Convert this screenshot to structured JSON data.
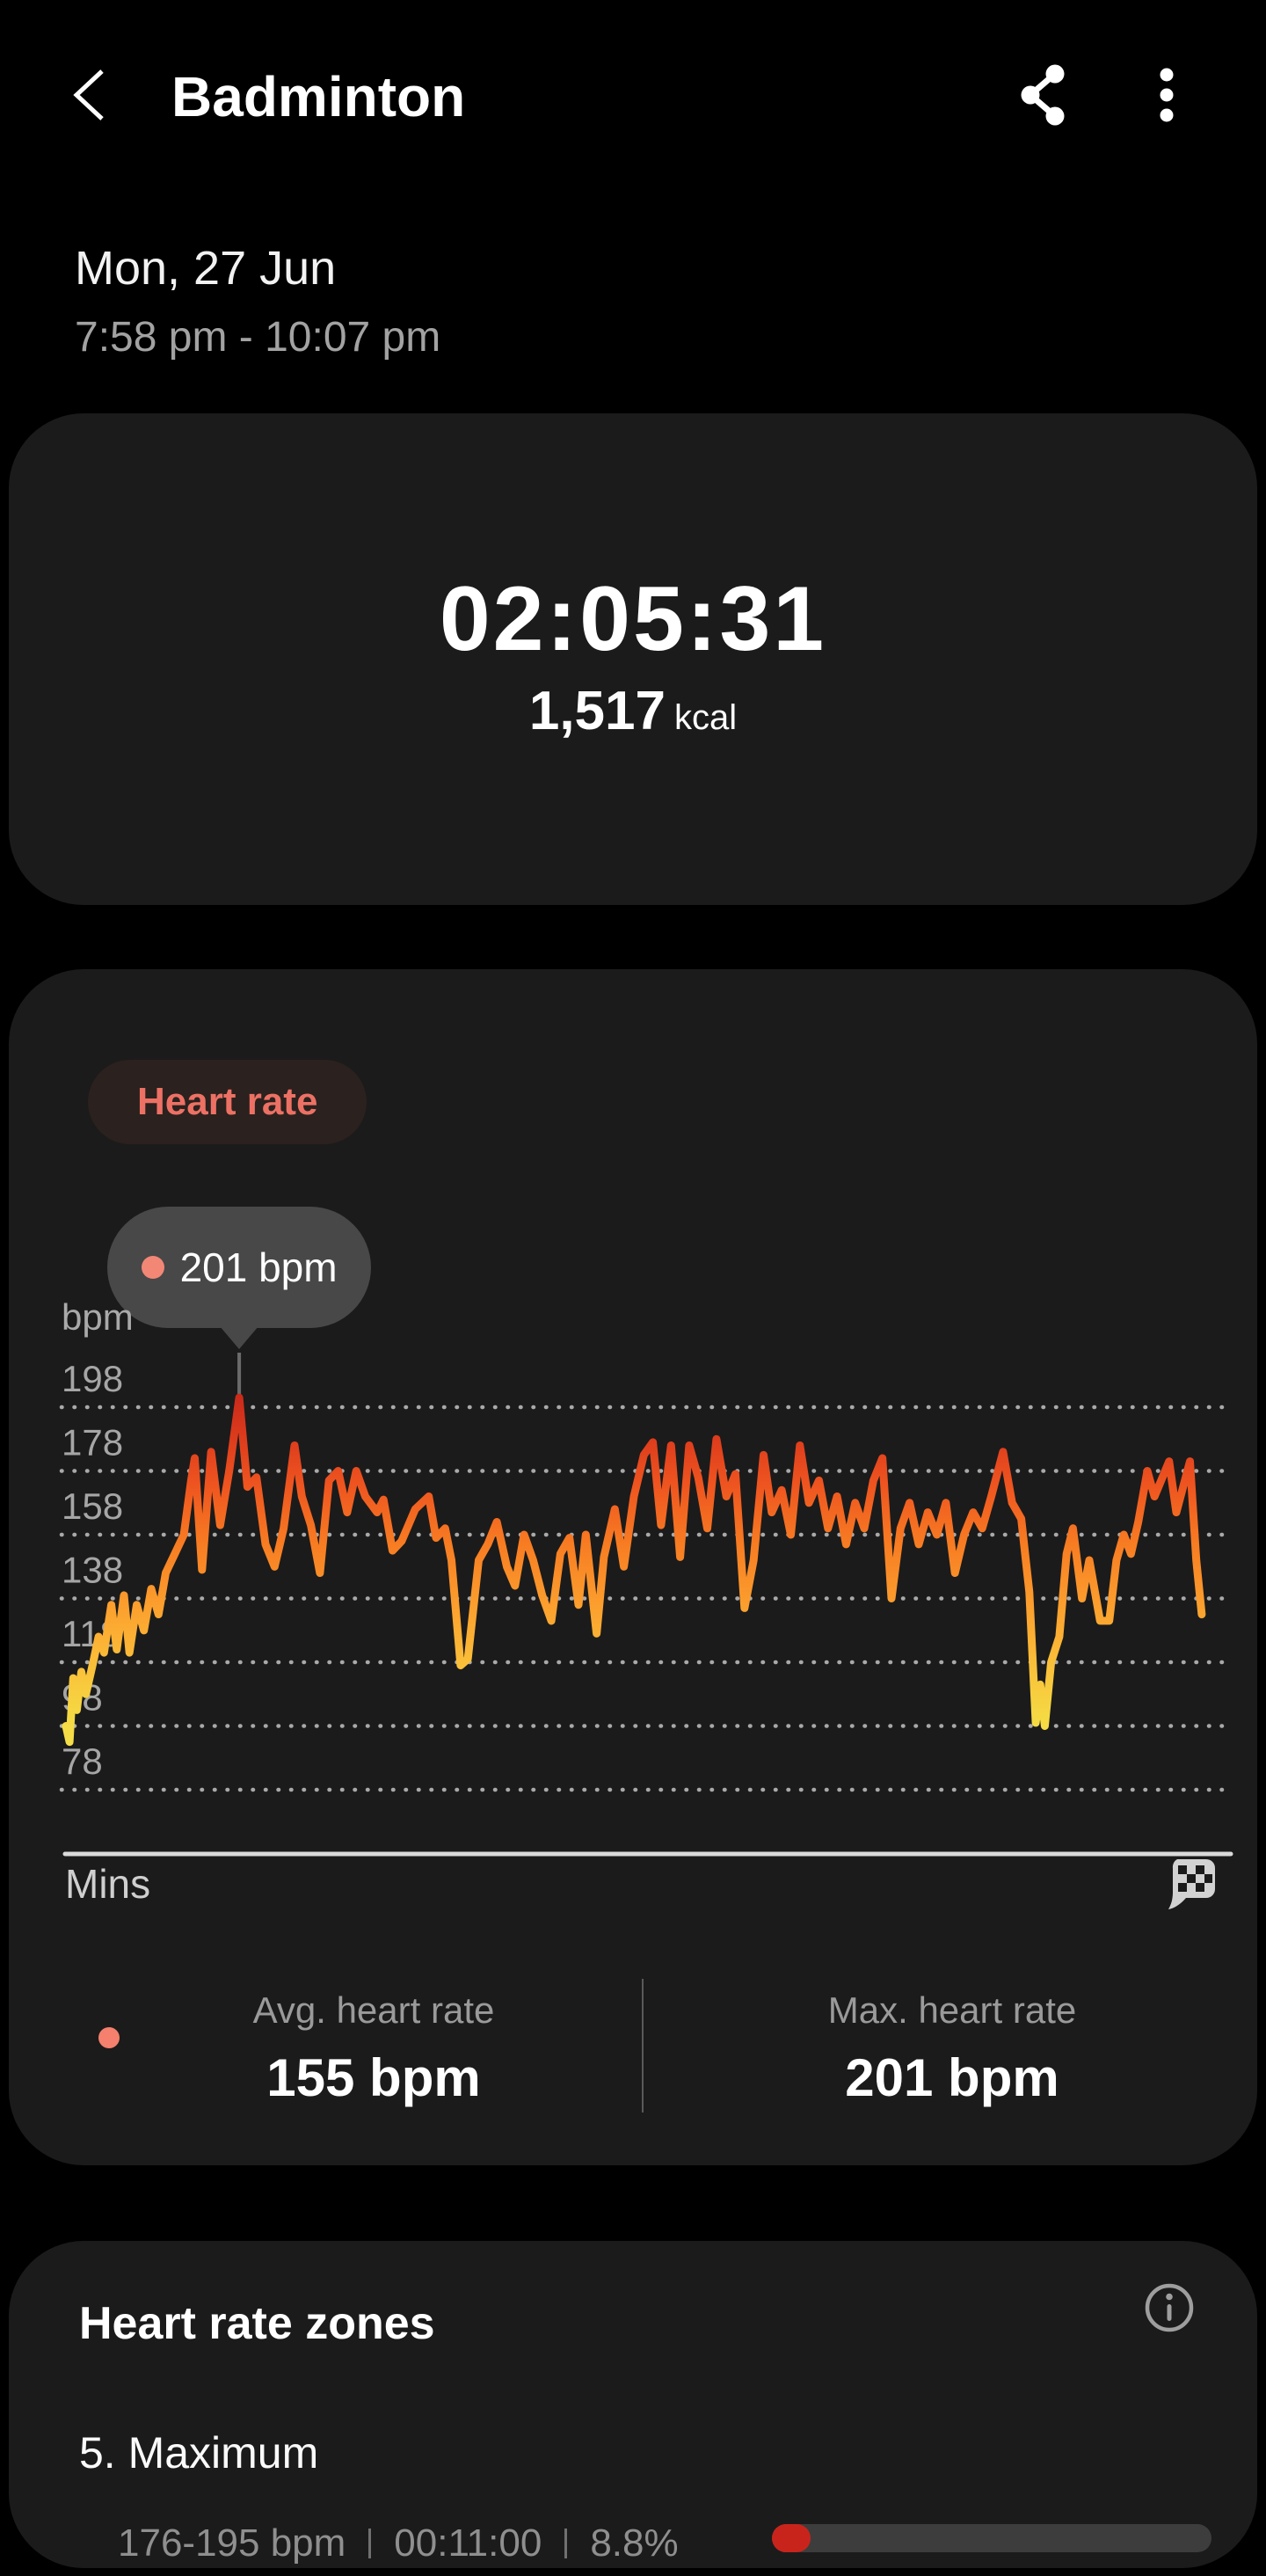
{
  "app_bar": {
    "title": "Badminton",
    "back_icon": "back-arrow-icon",
    "share_icon": "share-icon",
    "more_icon": "more-options-icon"
  },
  "session": {
    "date": "Mon, 27 Jun",
    "time_range": "7:58 pm - 10:07 pm"
  },
  "summary": {
    "duration": "02:05:31",
    "calories": "1,517",
    "calories_unit": "kcal"
  },
  "heart_rate_card": {
    "chip_label": "Heart rate",
    "tooltip_value": "201 bpm",
    "stats": [
      {
        "label": "Avg. heart rate",
        "value": "155 bpm"
      },
      {
        "label": "Max. heart rate",
        "value": "201 bpm"
      }
    ],
    "finish_icon": "checkered-flag-icon"
  },
  "chart_data": {
    "type": "line",
    "title": "Heart rate",
    "xlabel": "Mins",
    "ylabel": "bpm",
    "y_ticks": [
      198,
      178,
      158,
      138,
      118,
      98,
      78
    ],
    "ylim": [
      75,
      205
    ],
    "x_minutes_range": [
      0,
      125.5
    ],
    "grid": "dotted",
    "legend_position": "none",
    "avg_bpm": 155,
    "max_bpm": 201,
    "tooltip_point": {
      "minute": 19.1,
      "bpm": 201
    },
    "gradient_stops": [
      [
        "0%",
        "#c4261a"
      ],
      [
        "12%",
        "#db3a1c"
      ],
      [
        "24%",
        "#ee5420"
      ],
      [
        "38%",
        "#f77b22"
      ],
      [
        "52%",
        "#fb9c2d"
      ],
      [
        "66%",
        "#fbbc38"
      ],
      [
        "80%",
        "#f5d943"
      ],
      [
        "100%",
        "#f7ea55"
      ]
    ],
    "points": [
      [
        0,
        98
      ],
      [
        0.4,
        93
      ],
      [
        0.8,
        113
      ],
      [
        1.2,
        103
      ],
      [
        1.7,
        115
      ],
      [
        2.2,
        108
      ],
      [
        3,
        118
      ],
      [
        3.6,
        126
      ],
      [
        4.2,
        121
      ],
      [
        5,
        136
      ],
      [
        5.6,
        122
      ],
      [
        6.4,
        139
      ],
      [
        7,
        121
      ],
      [
        7.8,
        136
      ],
      [
        8.6,
        128
      ],
      [
        9.4,
        141
      ],
      [
        10.2,
        133
      ],
      [
        11,
        146
      ],
      [
        12,
        152
      ],
      [
        13,
        158
      ],
      [
        13.8,
        175
      ],
      [
        14.2,
        182
      ],
      [
        15,
        147
      ],
      [
        16,
        184
      ],
      [
        17,
        161
      ],
      [
        18,
        178
      ],
      [
        19.1,
        201
      ],
      [
        20,
        173
      ],
      [
        21,
        176
      ],
      [
        22,
        155
      ],
      [
        23,
        148
      ],
      [
        24,
        160
      ],
      [
        25.2,
        186
      ],
      [
        26,
        170
      ],
      [
        27,
        161
      ],
      [
        28,
        146
      ],
      [
        29,
        175
      ],
      [
        30,
        178
      ],
      [
        31,
        165
      ],
      [
        32,
        178
      ],
      [
        33,
        170
      ],
      [
        34.3,
        165
      ],
      [
        35,
        169
      ],
      [
        36,
        153
      ],
      [
        37,
        156
      ],
      [
        38.5,
        166
      ],
      [
        40,
        170
      ],
      [
        40.8,
        157
      ],
      [
        41.8,
        160
      ],
      [
        42.5,
        150
      ],
      [
        43.5,
        117
      ],
      [
        44.3,
        119
      ],
      [
        45.5,
        150
      ],
      [
        46.5,
        155
      ],
      [
        47.5,
        162
      ],
      [
        48.6,
        148
      ],
      [
        49.5,
        142
      ],
      [
        50.5,
        158
      ],
      [
        51.5,
        150
      ],
      [
        52.5,
        139
      ],
      [
        53.5,
        131
      ],
      [
        54.5,
        152
      ],
      [
        55.5,
        157
      ],
      [
        56.5,
        136
      ],
      [
        57.3,
        158
      ],
      [
        58.5,
        127
      ],
      [
        59.3,
        151
      ],
      [
        60.5,
        166
      ],
      [
        61.5,
        148
      ],
      [
        62.6,
        170
      ],
      [
        63.7,
        183
      ],
      [
        64.7,
        187
      ],
      [
        65.6,
        161
      ],
      [
        66.7,
        186
      ],
      [
        67.7,
        151
      ],
      [
        68.7,
        186
      ],
      [
        69.7,
        176
      ],
      [
        70.7,
        160
      ],
      [
        71.7,
        188
      ],
      [
        72.8,
        170
      ],
      [
        73.8,
        177
      ],
      [
        74.8,
        135
      ],
      [
        75.8,
        150
      ],
      [
        76.9,
        183
      ],
      [
        77.8,
        165
      ],
      [
        78.9,
        172
      ],
      [
        79.9,
        158
      ],
      [
        80.9,
        186
      ],
      [
        81.9,
        168
      ],
      [
        83,
        175
      ],
      [
        84,
        160
      ],
      [
        85,
        170
      ],
      [
        86,
        155
      ],
      [
        87,
        168
      ],
      [
        88,
        160
      ],
      [
        89,
        175
      ],
      [
        90,
        182
      ],
      [
        91,
        138
      ],
      [
        92,
        160
      ],
      [
        93,
        168
      ],
      [
        94,
        155
      ],
      [
        95,
        165
      ],
      [
        96,
        158
      ],
      [
        97,
        168
      ],
      [
        98,
        146
      ],
      [
        99,
        158
      ],
      [
        100,
        165
      ],
      [
        101,
        160
      ],
      [
        102,
        170
      ],
      [
        103.3,
        184
      ],
      [
        104.3,
        168
      ],
      [
        105.3,
        163
      ],
      [
        106.2,
        140
      ],
      [
        106.9,
        99
      ],
      [
        107.4,
        111
      ],
      [
        107.9,
        98
      ],
      [
        108.6,
        118
      ],
      [
        109.5,
        126
      ],
      [
        110.3,
        152
      ],
      [
        111,
        160
      ],
      [
        112,
        138
      ],
      [
        112.8,
        150
      ],
      [
        114,
        131
      ],
      [
        115,
        131
      ],
      [
        115.8,
        150
      ],
      [
        116.6,
        158
      ],
      [
        117.4,
        152
      ],
      [
        118.2,
        162
      ],
      [
        119.2,
        178
      ],
      [
        120,
        170
      ],
      [
        121.6,
        181
      ],
      [
        122.4,
        165
      ],
      [
        123.9,
        181
      ],
      [
        124.6,
        150
      ],
      [
        125.2,
        133
      ]
    ]
  },
  "zones_card": {
    "title": "Heart rate zones",
    "info_icon": "info-icon",
    "zones": [
      {
        "name": "5. Maximum",
        "range": "176-195 bpm",
        "duration": "00:11:00",
        "percent": "8.8%",
        "percent_value": 8.8,
        "bar_color": "#c9241c"
      }
    ]
  },
  "colors": {
    "page_bg": "#000000",
    "card_bg": "#1b1b1b",
    "chip_text": "#ec7164",
    "chip_bg": "#2b211e",
    "accent_salmon": "#f4806d",
    "tooltip_bg": "#484848",
    "zone_bar_fill": "#c9241c",
    "zone_bar_track": "#3d3d3d",
    "grid_dots": "#a9a9a9"
  }
}
